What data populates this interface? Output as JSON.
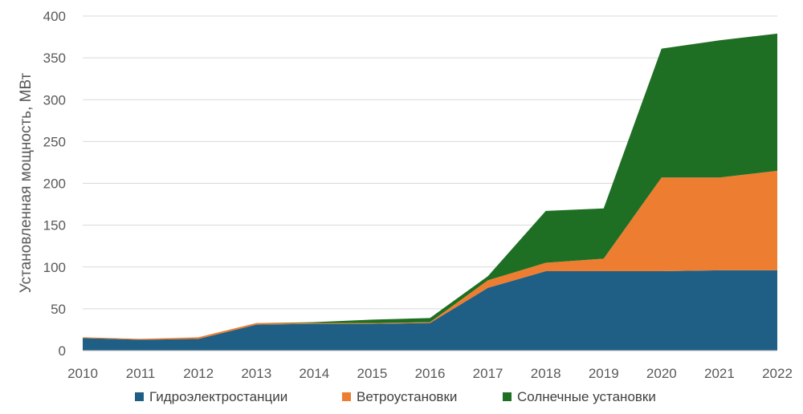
{
  "chart_data": {
    "type": "area",
    "stacked": true,
    "x": [
      "2010",
      "2011",
      "2012",
      "2013",
      "2014",
      "2015",
      "2016",
      "2017",
      "2018",
      "2019",
      "2020",
      "2021",
      "2022"
    ],
    "series": [
      {
        "name": "Гидроэлектростанции",
        "color": "#1f5f85",
        "values": [
          15,
          13,
          14,
          31,
          32,
          32,
          33,
          75,
          95,
          95,
          95,
          96,
          96
        ]
      },
      {
        "name": "Ветроустановки",
        "color": "#ed7d31",
        "values": [
          1,
          1,
          2,
          2,
          1,
          1,
          1,
          9,
          10,
          15,
          112,
          111,
          119
        ]
      },
      {
        "name": "Солнечные установки",
        "color": "#1e6f23",
        "values": [
          0,
          0,
          0,
          0,
          1,
          4,
          5,
          5,
          62,
          60,
          154,
          164,
          164
        ]
      }
    ],
    "ylabel": "Установленная мощность, МВт",
    "ylim": [
      0,
      400
    ],
    "yticks": [
      "0",
      "50",
      "100",
      "150",
      "200",
      "250",
      "300",
      "350",
      "400"
    ],
    "grid": true,
    "legend_position": "bottom"
  }
}
